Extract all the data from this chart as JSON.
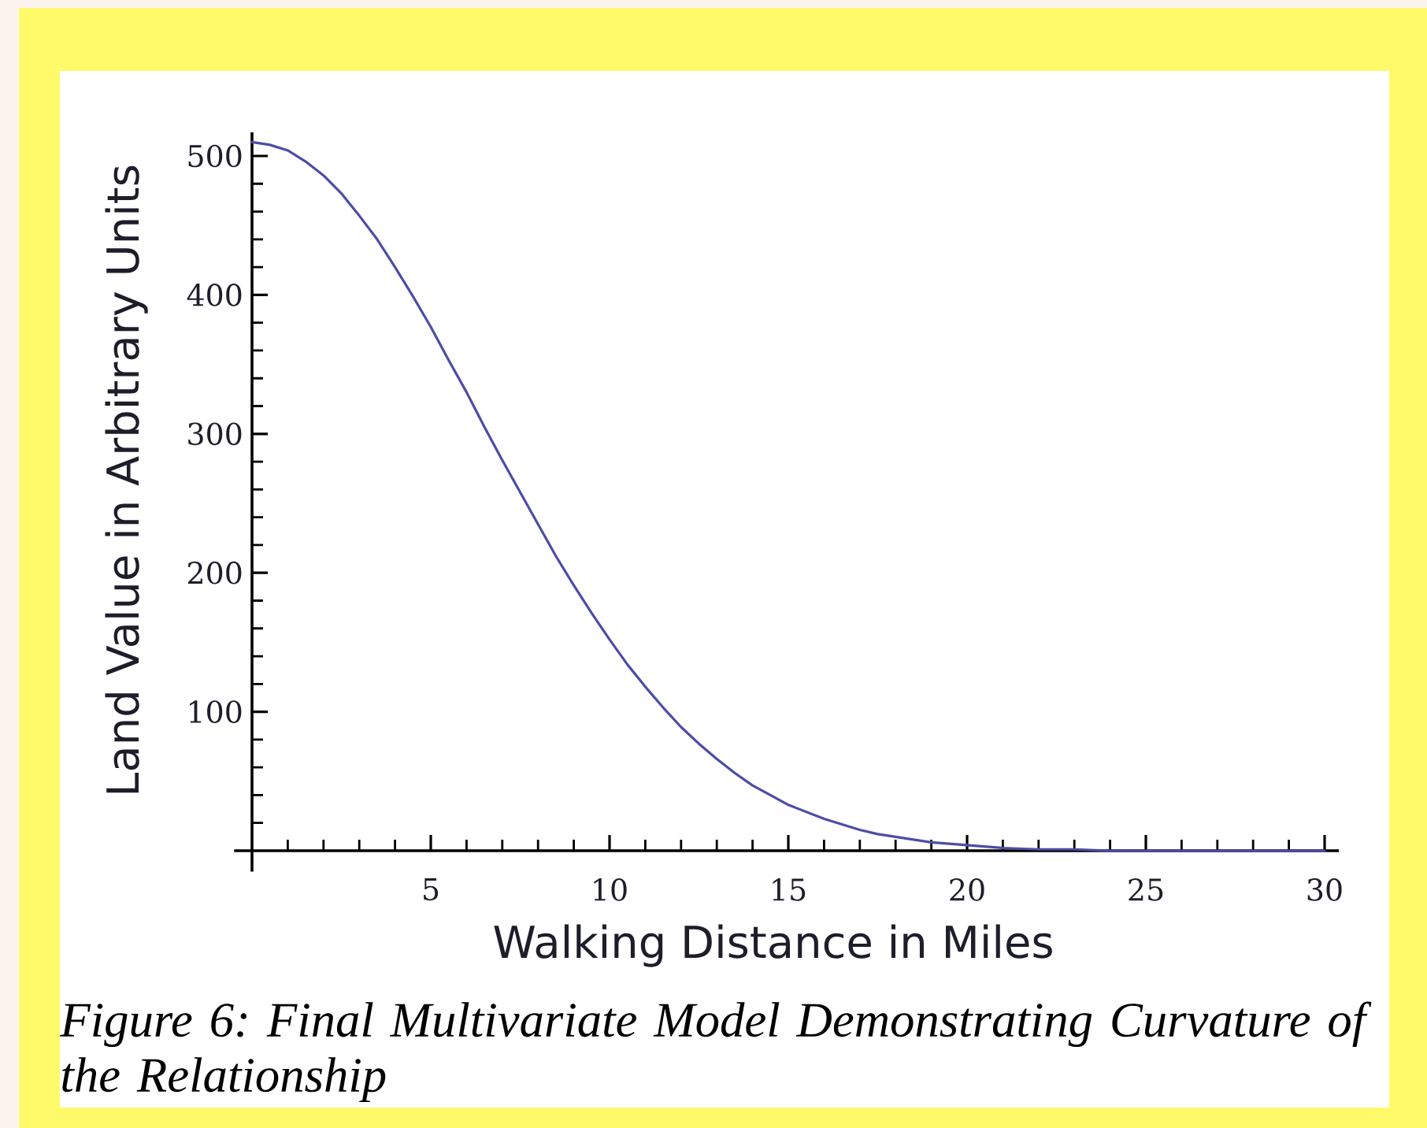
{
  "chart_data": {
    "type": "line",
    "xlabel": "Walking Distance in Miles",
    "ylabel": "Land Value in Arbitrary Units",
    "annotations": [
      "Figure 6: Final Multivariate Model Demonstrating Curvature of the Relationship"
    ],
    "x": [
      0,
      0.5,
      1,
      1.5,
      2,
      2.5,
      3,
      3.5,
      4,
      4.5,
      5,
      5.5,
      6,
      6.5,
      7,
      7.5,
      8,
      8.5,
      9,
      9.5,
      10,
      10.5,
      11,
      11.5,
      12,
      12.5,
      13,
      13.5,
      14,
      14.5,
      15,
      15.5,
      16,
      16.5,
      17,
      17.5,
      18,
      18.5,
      19,
      19.5,
      20,
      21,
      22,
      23,
      24,
      25,
      26,
      27,
      28,
      29,
      30
    ],
    "series": [
      {
        "color": "#4d4da6",
        "values": [
          510,
          508,
          504,
          496,
          486,
          473,
          457,
          440,
          420,
          399,
          377,
          353,
          330,
          305,
          281,
          258,
          235,
          212,
          191,
          171,
          152,
          134,
          118,
          103,
          89,
          77,
          66,
          56,
          47,
          40,
          33,
          28,
          23,
          19,
          15,
          12,
          10,
          8,
          6,
          5,
          4,
          2,
          1,
          1,
          0,
          0,
          0,
          0,
          0,
          0,
          0
        ]
      }
    ],
    "xlim": [
      -0.5,
      30.4
    ],
    "ylim": [
      -15,
      517
    ],
    "xticks": [
      5,
      10,
      15,
      20,
      25,
      30
    ],
    "yticks": [
      100,
      200,
      300,
      400,
      500
    ]
  }
}
